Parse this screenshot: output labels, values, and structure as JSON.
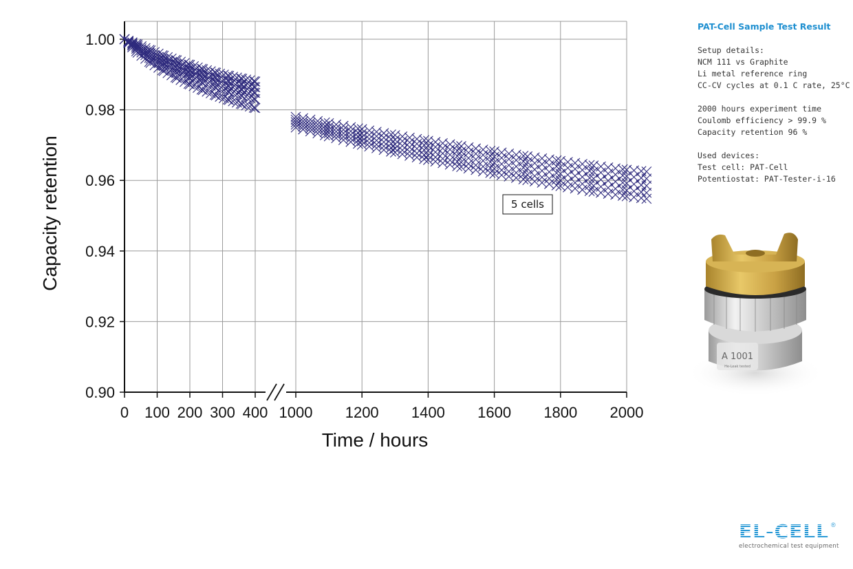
{
  "chart_data": {
    "type": "scatter",
    "xlabel": "Time / hours",
    "ylabel": "Capacity retention",
    "ylim": [
      0.9,
      1.005
    ],
    "y_ticks": [
      "0.90",
      "0.92",
      "0.94",
      "0.96",
      "0.98",
      "1.00"
    ],
    "x_axis_broken": true,
    "x_segments": [
      {
        "range": [
          0,
          400
        ],
        "ticks": [
          0,
          100,
          200,
          300,
          400
        ]
      },
      {
        "range": [
          1000,
          2000
        ],
        "ticks": [
          1000,
          1200,
          1400,
          1600,
          1800,
          2000
        ]
      }
    ],
    "x_tick_labels": [
      "0",
      "100",
      "200",
      "300",
      "400",
      "1000",
      "1200",
      "1400",
      "1600",
      "1800",
      "2000"
    ],
    "grid": true,
    "marker": "x",
    "marker_color": "#2e2a7d",
    "annotation": "5 cells",
    "series": [
      {
        "x": [
          0,
          40,
          80,
          120,
          160,
          200,
          240,
          280,
          320,
          360,
          400,
          1000,
          1100,
          1200,
          1300,
          1400,
          1500,
          1600,
          1700,
          1800,
          1900,
          2000,
          2060
        ],
        "y": [
          1.0,
          0.9985,
          0.9968,
          0.9953,
          0.994,
          0.9927,
          0.9915,
          0.9905,
          0.9896,
          0.9888,
          0.988,
          0.978,
          0.9762,
          0.9745,
          0.9728,
          0.9712,
          0.9697,
          0.9682,
          0.9668,
          0.9655,
          0.9642,
          0.963,
          0.9625
        ]
      },
      {
        "x": [
          0,
          40,
          80,
          120,
          160,
          200,
          240,
          280,
          320,
          360,
          400,
          1000,
          1100,
          1200,
          1300,
          1400,
          1500,
          1600,
          1700,
          1800,
          1900,
          2000,
          2060
        ],
        "y": [
          1.0,
          0.998,
          0.996,
          0.9943,
          0.9928,
          0.9914,
          0.9902,
          0.9891,
          0.9881,
          0.9872,
          0.9864,
          0.9772,
          0.9752,
          0.9733,
          0.9715,
          0.9698,
          0.9682,
          0.9667,
          0.9652,
          0.9638,
          0.9625,
          0.9612,
          0.9605
        ]
      },
      {
        "x": [
          0,
          40,
          80,
          120,
          160,
          200,
          240,
          280,
          320,
          360,
          400,
          1000,
          1100,
          1200,
          1300,
          1400,
          1500,
          1600,
          1700,
          1800,
          1900,
          2000,
          2060
        ],
        "y": [
          1.0,
          0.9975,
          0.9953,
          0.9934,
          0.9918,
          0.9903,
          0.989,
          0.9878,
          0.9867,
          0.9857,
          0.9848,
          0.9765,
          0.9743,
          0.9722,
          0.9702,
          0.9684,
          0.9667,
          0.965,
          0.9634,
          0.9619,
          0.9605,
          0.9592,
          0.9585
        ]
      },
      {
        "x": [
          0,
          40,
          80,
          120,
          160,
          200,
          240,
          280,
          320,
          360,
          400,
          1000,
          1100,
          1200,
          1300,
          1400,
          1500,
          1600,
          1700,
          1800,
          1900,
          2000,
          2060
        ],
        "y": [
          1.0,
          0.997,
          0.9945,
          0.9924,
          0.9906,
          0.989,
          0.9876,
          0.9863,
          0.9851,
          0.984,
          0.983,
          0.9758,
          0.9734,
          0.9711,
          0.969,
          0.967,
          0.9651,
          0.9633,
          0.9616,
          0.96,
          0.9585,
          0.9572,
          0.9565
        ]
      },
      {
        "x": [
          0,
          40,
          80,
          120,
          160,
          200,
          240,
          280,
          320,
          360,
          400,
          1000,
          1100,
          1200,
          1300,
          1400,
          1500,
          1600,
          1700,
          1800,
          1900,
          2000,
          2060
        ],
        "y": [
          1.0,
          0.9962,
          0.9933,
          0.991,
          0.989,
          0.9872,
          0.9856,
          0.9841,
          0.9828,
          0.9816,
          0.9805,
          0.975,
          0.9725,
          0.9701,
          0.9679,
          0.9658,
          0.9638,
          0.9619,
          0.9601,
          0.9584,
          0.9568,
          0.9555,
          0.9548
        ]
      }
    ]
  },
  "info": {
    "title": "PAT-Cell Sample Test Result",
    "setup": [
      "Setup details:",
      "NCM 111 vs Graphite",
      "Li metal reference ring",
      "CC-CV cycles at 0.1 C rate, 25°C"
    ],
    "results": [
      "2000 hours experiment time",
      "Coulomb efficiency > 99.9 %",
      "Capacity retention 96 %"
    ],
    "devices": [
      "Used devices:",
      "Test cell: PAT-Cell",
      "Potentiostat: PAT-Tester-i-16"
    ]
  },
  "product_image": {
    "label": "A 1001",
    "sublabel": "He-Leak tested"
  },
  "logo": {
    "name": "EL-CELL",
    "tagline": "electrochemical test equipment"
  }
}
